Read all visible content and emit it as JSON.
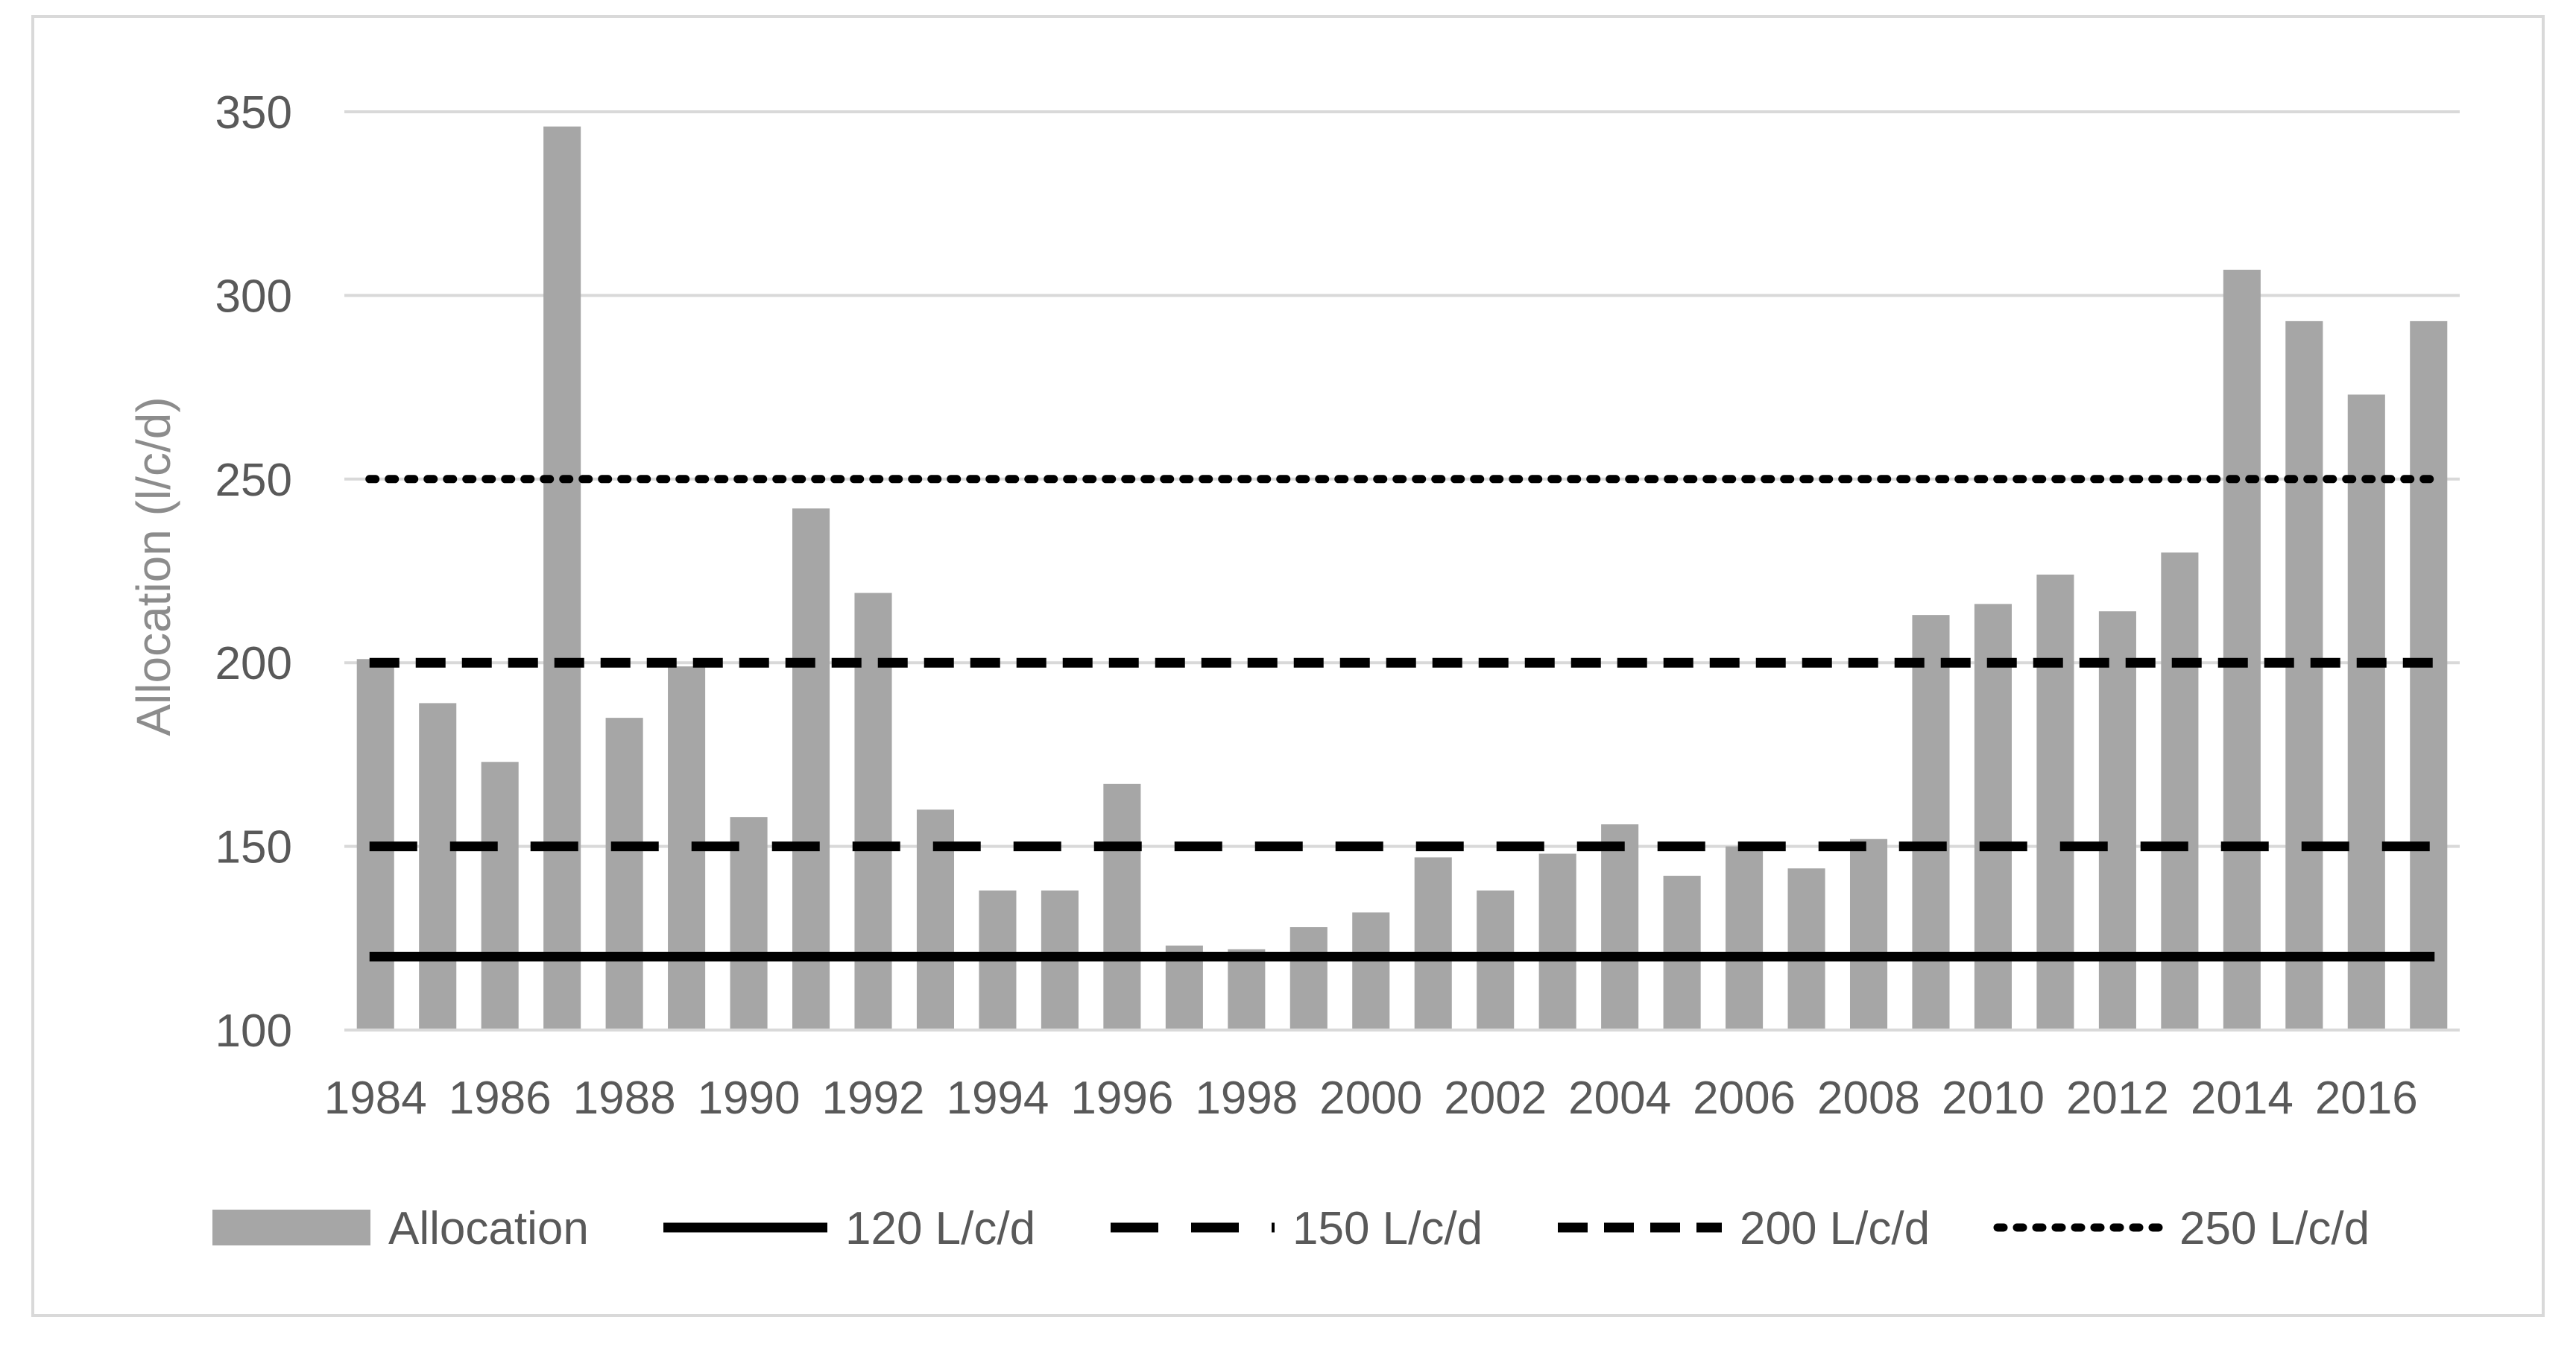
{
  "chart_data": {
    "type": "bar",
    "title": "",
    "xlabel": "",
    "ylabel": "Allocation (l/c/d)",
    "ylim": [
      100,
      350
    ],
    "yticks": [
      100,
      150,
      200,
      250,
      300,
      350
    ],
    "grid": true,
    "legend_position": "bottom",
    "categories": [
      "1984",
      "1985",
      "1986",
      "1987",
      "1988",
      "1989",
      "1990",
      "1991",
      "1992",
      "1993",
      "1994",
      "1995",
      "1996",
      "1997",
      "1998",
      "1999",
      "2000",
      "2001",
      "2002",
      "2003",
      "2004",
      "2005",
      "2006",
      "2007",
      "2008",
      "2009",
      "2010",
      "2011",
      "2012",
      "2013",
      "2014",
      "2015",
      "2016",
      "2017"
    ],
    "xtick_labels": [
      "1984",
      "1986",
      "1988",
      "1990",
      "1992",
      "1994",
      "1996",
      "1998",
      "2000",
      "2002",
      "2004",
      "2006",
      "2008",
      "2010",
      "2012",
      "2014",
      "2016"
    ],
    "series": [
      {
        "name": "Allocation",
        "kind": "bar",
        "color": "#a6a6a6",
        "values": [
          201,
          189,
          173,
          346,
          185,
          199,
          158,
          242,
          219,
          160,
          138,
          138,
          167,
          123,
          122,
          128,
          132,
          147,
          138,
          148,
          156,
          142,
          150,
          144,
          152,
          213,
          216,
          224,
          214,
          230,
          307,
          293,
          273,
          293
        ]
      }
    ],
    "reference_lines": [
      {
        "name": "120 L/c/d",
        "value": 120,
        "style": "solid",
        "color": "#000000"
      },
      {
        "name": "150 L/c/d",
        "value": 150,
        "style": "long-dash",
        "color": "#000000"
      },
      {
        "name": "200 L/c/d",
        "value": 200,
        "style": "dash",
        "color": "#000000"
      },
      {
        "name": "250 L/c/d",
        "value": 250,
        "style": "dot",
        "color": "#000000"
      }
    ]
  }
}
